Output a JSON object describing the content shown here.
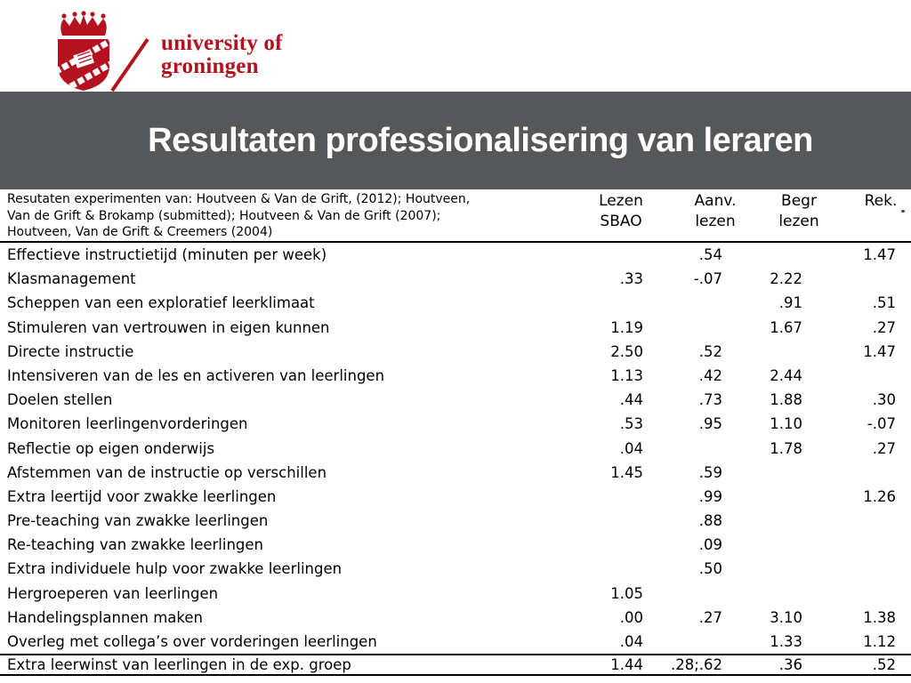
{
  "colors": {
    "brand_red": "#b5121f",
    "banner_gray": "#565759",
    "title_text": "#ffffff",
    "body_text": "#000000"
  },
  "logo": {
    "crest": "university-of-groningen-crest",
    "wordmark_line1": "university of",
    "wordmark_line2": "groningen"
  },
  "banner": {
    "title": "Resultaten professionalisering van leraren"
  },
  "table": {
    "source_note_lines": [
      "Resutaten experimenten van: Houtveen & Van de Grift, (2012);  Houtveen,",
      "Van de Grift & Brokamp (submitted); Houtveen & Van de Grift (2007);",
      "Houtveen, Van de Grift & Creemers (2004)"
    ],
    "columns": [
      {
        "key": "lezen-sbao",
        "line1": "Lezen",
        "line2": "SBAO"
      },
      {
        "key": "aanv-lezen",
        "line1": "Aanv.",
        "line2": "lezen"
      },
      {
        "key": "begr-lezen",
        "line1": "Begr",
        "line2": "lezen"
      },
      {
        "key": "rek",
        "line1": "Rek.",
        "line2": ""
      }
    ],
    "rows": [
      {
        "label": "Effectieve instructietijd (minuten per week)",
        "values": [
          "",
          ".54",
          "",
          "1.47"
        ]
      },
      {
        "label": "Klasmanagement",
        "values": [
          ".33",
          "-.07",
          "2.22",
          ""
        ]
      },
      {
        "label": "Scheppen van een exploratief leerklimaat",
        "values": [
          "",
          "",
          ".91",
          ".51"
        ]
      },
      {
        "label": "Stimuleren van vertrouwen in eigen kunnen",
        "values": [
          "1.19",
          "",
          "1.67",
          ".27"
        ]
      },
      {
        "label": "Directe instructie",
        "values": [
          "2.50",
          ".52",
          "",
          "1.47"
        ]
      },
      {
        "label": "Intensiveren van de les en activeren van leerlingen",
        "values": [
          "1.13",
          ".42",
          "2.44",
          ""
        ]
      },
      {
        "label": "Doelen stellen",
        "values": [
          ".44",
          ".73",
          "1.88",
          ".30"
        ]
      },
      {
        "label": "Monitoren leerlingenvorderingen",
        "values": [
          ".53",
          ".95",
          "1.10",
          "-.07"
        ]
      },
      {
        "label": "Reflectie op eigen onderwijs",
        "values": [
          ".04",
          "",
          "1.78",
          ".27"
        ]
      },
      {
        "label": "Afstemmen van de instructie op verschillen",
        "values": [
          "1.45",
          ".59",
          "",
          ""
        ]
      },
      {
        "label": "Extra leertijd voor zwakke leerlingen",
        "values": [
          "",
          ".99",
          "",
          "1.26"
        ]
      },
      {
        "label": "Pre-teaching van zwakke leerlingen",
        "values": [
          "",
          ".88",
          "",
          ""
        ]
      },
      {
        "label": "Re-teaching van zwakke leerlingen",
        "values": [
          "",
          ".09",
          "",
          ""
        ]
      },
      {
        "label": "Extra individuele hulp voor zwakke leerlingen",
        "values": [
          "",
          ".50",
          "",
          ""
        ]
      },
      {
        "label": "Hergroeperen van leerlingen",
        "values": [
          "1.05",
          "",
          "",
          ""
        ]
      },
      {
        "label": "Handelingsplannen maken",
        "values": [
          ".00",
          ".27",
          "3.10",
          "1.38"
        ]
      },
      {
        "label": "Overleg met collega’s over vorderingen leerlingen",
        "values": [
          ".04",
          "",
          "1.33",
          "1.12"
        ]
      }
    ],
    "summary_row": {
      "label": "Extra leerwinst van leerlingen in de exp. groep",
      "values": [
        "1.44",
        ".28;.62",
        ".36",
        ".52"
      ]
    }
  }
}
